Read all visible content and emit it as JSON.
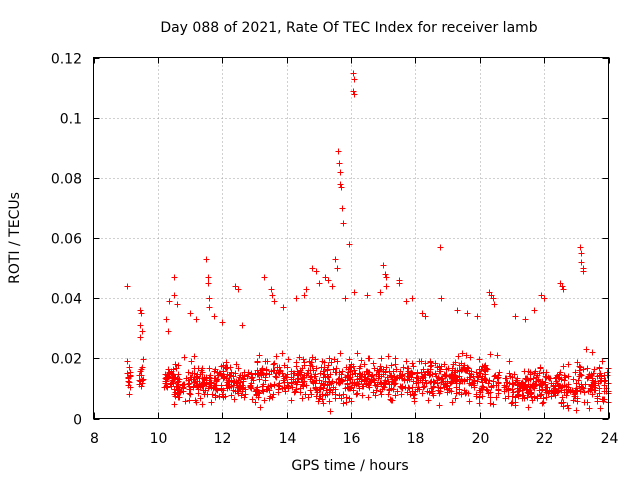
{
  "chart_data": {
    "type": "scatter",
    "title": "Day 088 of 2021, Rate Of TEC Index for receiver lamb",
    "xlabel": "GPS time / hours",
    "ylabel": "ROTI / TECUs",
    "xlim": [
      8,
      24
    ],
    "ylim": [
      0,
      0.12
    ],
    "xticks": [
      8,
      10,
      12,
      14,
      16,
      18,
      20,
      22,
      24
    ],
    "yticks": [
      0,
      0.02,
      0.04,
      0.06,
      0.08,
      0.1,
      0.12
    ],
    "xtick_labels": [
      "8",
      "10",
      "12",
      "14",
      "16",
      "18",
      "20",
      "22",
      "24"
    ],
    "ytick_labels": [
      "0",
      "0.02",
      "0.04",
      "0.06",
      "0.08",
      "0.1",
      "0.12"
    ],
    "grid": true,
    "marker": "+",
    "color": "#ff0000",
    "series": [
      {
        "name": "ROTI",
        "dense_segments": [
          {
            "x_start": 9.05,
            "x_end": 9.15,
            "y_center": 0.013,
            "spread": 0.006
          },
          {
            "x_start": 9.4,
            "x_end": 9.55,
            "y_center": 0.014,
            "spread": 0.008
          },
          {
            "x_start": 10.2,
            "x_end": 13.0,
            "y_center": 0.012,
            "spread": 0.009
          },
          {
            "x_start": 13.0,
            "x_end": 16.2,
            "y_center": 0.013,
            "spread": 0.011
          },
          {
            "x_start": 16.2,
            "x_end": 19.3,
            "y_center": 0.013,
            "spread": 0.01
          },
          {
            "x_start": 19.3,
            "x_end": 20.6,
            "y_center": 0.013,
            "spread": 0.011
          },
          {
            "x_start": 20.75,
            "x_end": 24.0,
            "y_center": 0.011,
            "spread": 0.009
          }
        ],
        "points": [
          [
            9.05,
            0.044
          ],
          [
            9.05,
            0.019
          ],
          [
            9.1,
            0.017
          ],
          [
            9.08,
            0.011
          ],
          [
            9.1,
            0.008
          ],
          [
            9.45,
            0.036
          ],
          [
            9.45,
            0.031
          ],
          [
            9.45,
            0.027
          ],
          [
            9.48,
            0.035
          ],
          [
            9.5,
            0.029
          ],
          [
            10.25,
            0.033
          ],
          [
            10.3,
            0.029
          ],
          [
            10.35,
            0.039
          ],
          [
            10.5,
            0.047
          ],
          [
            10.5,
            0.041
          ],
          [
            10.6,
            0.038
          ],
          [
            11.0,
            0.035
          ],
          [
            11.2,
            0.033
          ],
          [
            11.5,
            0.053
          ],
          [
            11.55,
            0.047
          ],
          [
            11.55,
            0.045
          ],
          [
            11.6,
            0.04
          ],
          [
            11.6,
            0.037
          ],
          [
            11.75,
            0.034
          ],
          [
            12.0,
            0.032
          ],
          [
            12.4,
            0.044
          ],
          [
            12.5,
            0.043
          ],
          [
            12.6,
            0.031
          ],
          [
            13.3,
            0.047
          ],
          [
            13.5,
            0.043
          ],
          [
            13.55,
            0.041
          ],
          [
            13.6,
            0.039
          ],
          [
            13.9,
            0.037
          ],
          [
            14.3,
            0.04
          ],
          [
            14.55,
            0.041
          ],
          [
            14.6,
            0.043
          ],
          [
            14.8,
            0.05
          ],
          [
            14.9,
            0.049
          ],
          [
            15.0,
            0.045
          ],
          [
            15.2,
            0.047
          ],
          [
            15.3,
            0.046
          ],
          [
            15.4,
            0.044
          ],
          [
            15.5,
            0.053
          ],
          [
            15.55,
            0.05
          ],
          [
            15.6,
            0.089
          ],
          [
            15.62,
            0.085
          ],
          [
            15.65,
            0.082
          ],
          [
            15.65,
            0.078
          ],
          [
            15.7,
            0.077
          ],
          [
            15.72,
            0.07
          ],
          [
            15.75,
            0.065
          ],
          [
            15.8,
            0.04
          ],
          [
            15.95,
            0.058
          ],
          [
            16.05,
            0.115
          ],
          [
            16.08,
            0.113
          ],
          [
            16.05,
            0.109
          ],
          [
            16.1,
            0.108
          ],
          [
            16.1,
            0.042
          ],
          [
            16.5,
            0.041
          ],
          [
            16.9,
            0.042
          ],
          [
            17.0,
            0.051
          ],
          [
            17.05,
            0.048
          ],
          [
            17.1,
            0.047
          ],
          [
            17.1,
            0.044
          ],
          [
            17.5,
            0.046
          ],
          [
            17.5,
            0.045
          ],
          [
            17.7,
            0.039
          ],
          [
            17.9,
            0.04
          ],
          [
            18.2,
            0.035
          ],
          [
            18.3,
            0.034
          ],
          [
            18.75,
            0.057
          ],
          [
            18.8,
            0.04
          ],
          [
            19.3,
            0.036
          ],
          [
            19.6,
            0.035
          ],
          [
            19.9,
            0.034
          ],
          [
            20.3,
            0.042
          ],
          [
            20.35,
            0.041
          ],
          [
            20.4,
            0.04
          ],
          [
            20.45,
            0.038
          ],
          [
            21.1,
            0.034
          ],
          [
            21.4,
            0.033
          ],
          [
            21.7,
            0.036
          ],
          [
            21.9,
            0.041
          ],
          [
            22.0,
            0.04
          ],
          [
            22.5,
            0.045
          ],
          [
            22.55,
            0.044
          ],
          [
            22.6,
            0.043
          ],
          [
            23.1,
            0.057
          ],
          [
            23.15,
            0.055
          ],
          [
            23.15,
            0.052
          ],
          [
            23.2,
            0.05
          ],
          [
            23.2,
            0.049
          ],
          [
            23.3,
            0.023
          ],
          [
            23.5,
            0.022
          ],
          [
            23.8,
            0.019
          ]
        ]
      }
    ]
  }
}
